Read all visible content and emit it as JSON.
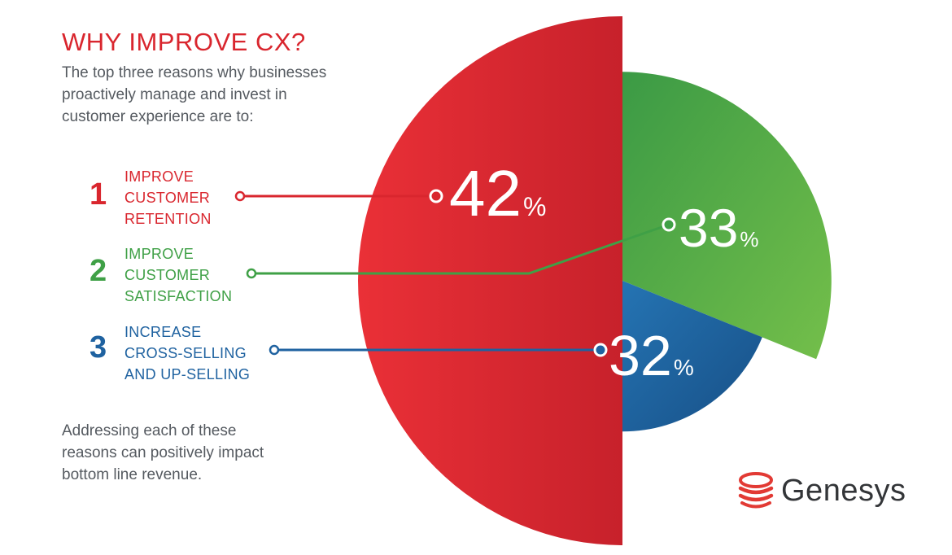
{
  "header": {
    "title": "WHY IMPROVE CX?",
    "intro_lines": [
      "The top three reasons why businesses",
      "proactively manage and invest in",
      "customer experience are to:"
    ]
  },
  "footer": {
    "lines": [
      "Addressing each of these",
      "reasons can positively impact",
      "bottom line revenue."
    ]
  },
  "logo": {
    "text": "Genesys",
    "icon": "genesys-stacked-swoosh-icon"
  },
  "colors": {
    "red": "#d9262e",
    "green": "#3fa046",
    "blue": "#1f62a0",
    "text": "#555a60"
  },
  "chart_data": {
    "type": "pie",
    "unit": "%",
    "slices": [
      {
        "rank": "1",
        "label_lines": [
          "IMPROVE",
          "CUSTOMER",
          "RETENTION"
        ],
        "value": 42,
        "color": "#d9262e"
      },
      {
        "rank": "2",
        "label_lines": [
          "IMPROVE",
          "CUSTOMER",
          "SATISFACTION"
        ],
        "value": 33,
        "color": "#3fa046"
      },
      {
        "rank": "3",
        "label_lines": [
          "INCREASE",
          "CROSS-SELLING",
          "AND UP-SELLING"
        ],
        "value": 32,
        "color": "#1f62a0"
      }
    ]
  }
}
